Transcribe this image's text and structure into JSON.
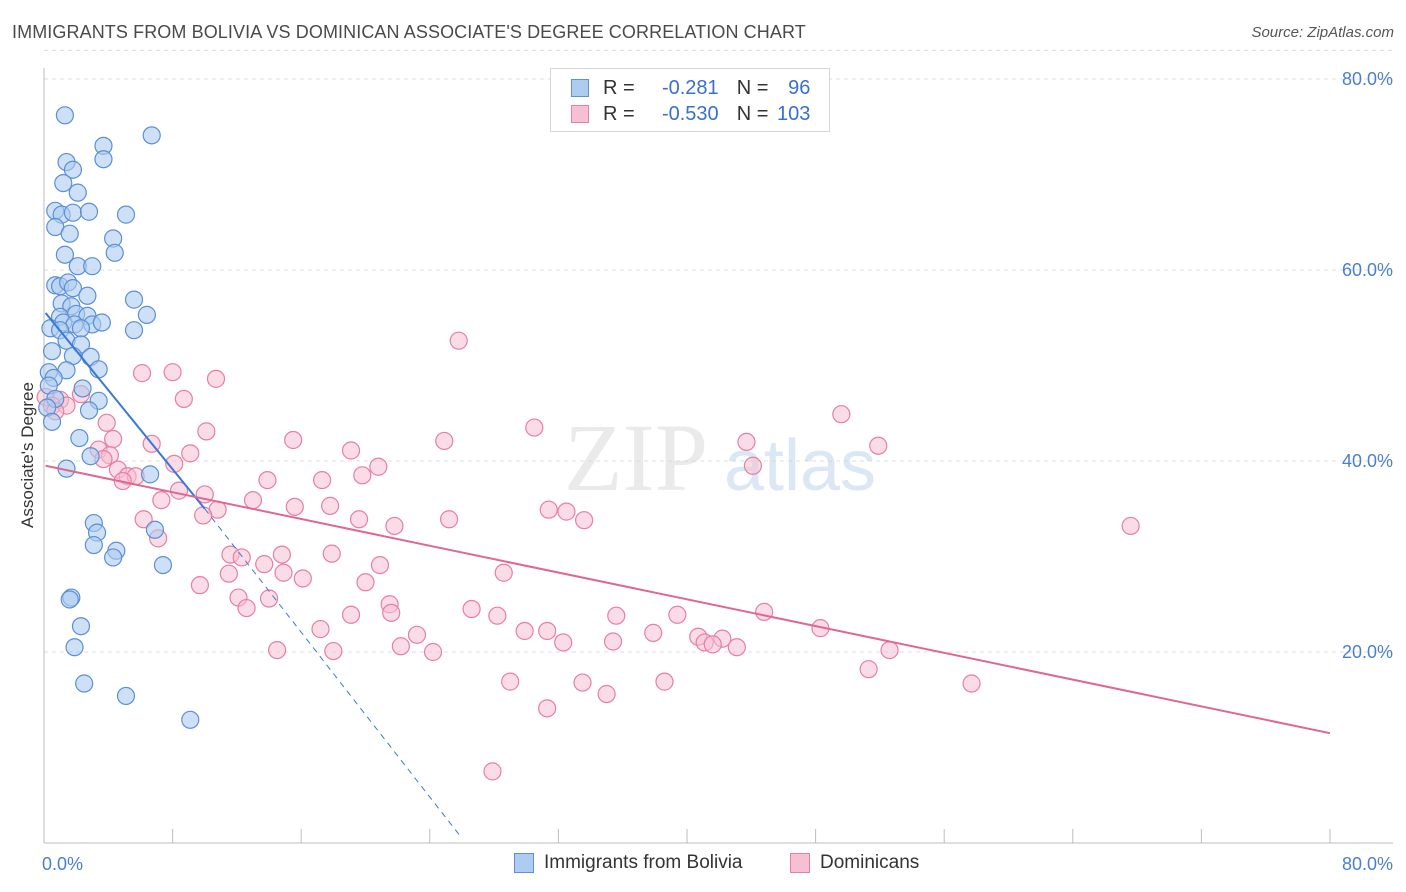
{
  "title": "IMMIGRANTS FROM BOLIVIA VS DOMINICAN ASSOCIATE'S DEGREE CORRELATION CHART",
  "source": "Source: ZipAtlas.com",
  "watermark": {
    "zip": "ZIP",
    "atlas": "atlas"
  },
  "colors": {
    "blue_fill": "#aecbf0",
    "blue_stroke": "#5b8fd6",
    "blue_line": "#3a78d8",
    "pink_fill": "#f6c0d2",
    "pink_stroke": "#e77fa0",
    "pink_line": "#e06792",
    "accent_text": "#4a7fd0"
  },
  "legend": {
    "r_label": "R =",
    "n_label": "N =",
    "bolivia": {
      "r": "-0.281",
      "n": "96"
    },
    "dominican": {
      "r": "-0.530",
      "n": "103"
    }
  },
  "bottom_legend": {
    "bolivia": "Immigrants from Bolivia",
    "dominican": "Dominicans"
  },
  "chart_data": {
    "type": "scatter",
    "title": "IMMIGRANTS FROM BOLIVIA VS DOMINICAN ASSOCIATE'S DEGREE CORRELATION CHART",
    "xlabel": "",
    "ylabel": "Associate's Degree",
    "xlim": [
      0,
      80
    ],
    "ylim": [
      0,
      83
    ],
    "x_tick_labels": [
      "0.0%",
      "80.0%"
    ],
    "y_ticks": [
      20,
      40,
      60,
      80
    ],
    "y_tick_labels": [
      "20.0%",
      "40.0%",
      "60.0%",
      "80.0%"
    ],
    "grid": true,
    "series": [
      {
        "name": "Immigrants from Bolivia",
        "r": -0.281,
        "n": 96,
        "trend": {
          "x0": 0.1,
          "y0": 55.5,
          "x1": 10.0,
          "y1": 35.0,
          "dash_to_x": 26.0,
          "dash_to_y": 0.5
        },
        "points": [
          [
            1.3,
            76.2
          ],
          [
            6.7,
            74.1
          ],
          [
            3.7,
            73
          ],
          [
            1.4,
            71.3
          ],
          [
            3.7,
            71.6
          ],
          [
            1.8,
            70.5
          ],
          [
            1.2,
            69.1
          ],
          [
            2.1,
            68.1
          ],
          [
            0.7,
            66.2
          ],
          [
            1.1,
            65.8
          ],
          [
            1.8,
            66
          ],
          [
            2.8,
            66.1
          ],
          [
            5.1,
            65.8
          ],
          [
            0.7,
            64.5
          ],
          [
            1.6,
            63.8
          ],
          [
            4.3,
            63.3
          ],
          [
            4.4,
            61.8
          ],
          [
            1.3,
            61.6
          ],
          [
            2.1,
            60.4
          ],
          [
            3.0,
            60.4
          ],
          [
            0.7,
            58.4
          ],
          [
            1.0,
            58.3
          ],
          [
            1.5,
            58.7
          ],
          [
            1.8,
            58.1
          ],
          [
            2.7,
            57.3
          ],
          [
            5.6,
            56.9
          ],
          [
            1.1,
            56.5
          ],
          [
            1.7,
            56.2
          ],
          [
            6.4,
            55.3
          ],
          [
            1.0,
            55.1
          ],
          [
            2.0,
            55.4
          ],
          [
            2.7,
            55.2
          ],
          [
            1.2,
            54.5
          ],
          [
            1.9,
            54.3
          ],
          [
            3.0,
            54.3
          ],
          [
            3.6,
            54.5
          ],
          [
            0.4,
            53.9
          ],
          [
            1.0,
            53.7
          ],
          [
            2.3,
            53.9
          ],
          [
            5.6,
            53.7
          ],
          [
            1.4,
            52.6
          ],
          [
            2.3,
            52.2
          ],
          [
            0.5,
            51.5
          ],
          [
            1.8,
            51
          ],
          [
            2.9,
            50.9
          ],
          [
            0.3,
            49.3
          ],
          [
            1.4,
            49.5
          ],
          [
            3.4,
            49.6
          ],
          [
            0.6,
            48.7
          ],
          [
            0.3,
            47.9
          ],
          [
            2.4,
            47.6
          ],
          [
            0.7,
            46.5
          ],
          [
            3.4,
            46.3
          ],
          [
            0.2,
            45.6
          ],
          [
            2.8,
            45.3
          ],
          [
            0.5,
            44.1
          ],
          [
            2.2,
            42.4
          ],
          [
            2.9,
            40.5
          ],
          [
            1.4,
            39.2
          ],
          [
            6.6,
            38.6
          ],
          [
            3.1,
            33.5
          ],
          [
            3.3,
            32.5
          ],
          [
            6.9,
            32.8
          ],
          [
            3.1,
            31.2
          ],
          [
            4.5,
            30.6
          ],
          [
            4.3,
            29.9
          ],
          [
            7.4,
            29.1
          ],
          [
            1.7,
            25.7
          ],
          [
            1.6,
            25.5
          ],
          [
            2.3,
            22.7
          ],
          [
            1.9,
            20.5
          ],
          [
            2.5,
            16.7
          ],
          [
            5.1,
            15.4
          ],
          [
            9.1,
            12.9
          ]
        ]
      },
      {
        "name": "Dominicans",
        "r": -0.53,
        "n": 103,
        "trend": {
          "x0": 0.1,
          "y0": 39.5,
          "x1": 80.0,
          "y1": 11.5
        },
        "points": [
          [
            25.8,
            52.6
          ],
          [
            8.0,
            49.3
          ],
          [
            6.1,
            49.2
          ],
          [
            10.7,
            48.6
          ],
          [
            2.3,
            47
          ],
          [
            0.1,
            46.7
          ],
          [
            1.0,
            46.4
          ],
          [
            8.7,
            46.5
          ],
          [
            0.5,
            45.8
          ],
          [
            1.4,
            45.8
          ],
          [
            0.7,
            45.2
          ],
          [
            49.6,
            44.9
          ],
          [
            3.9,
            44
          ],
          [
            30.5,
            43.5
          ],
          [
            10.1,
            43.1
          ],
          [
            4.3,
            42.3
          ],
          [
            15.5,
            42.2
          ],
          [
            24.9,
            42.1
          ],
          [
            6.7,
            41.8
          ],
          [
            43.7,
            42
          ],
          [
            51.9,
            41.6
          ],
          [
            3.4,
            41.2
          ],
          [
            19.1,
            41.1
          ],
          [
            9.1,
            40.8
          ],
          [
            4.1,
            40.6
          ],
          [
            3.7,
            40.2
          ],
          [
            8.1,
            39.7
          ],
          [
            20.8,
            39.4
          ],
          [
            44.1,
            39.5
          ],
          [
            4.6,
            39.1
          ],
          [
            5.2,
            38.4
          ],
          [
            19.8,
            38.5
          ],
          [
            5.7,
            38.4
          ],
          [
            13.9,
            38
          ],
          [
            17.3,
            38
          ],
          [
            4.9,
            37.9
          ],
          [
            8.4,
            36.9
          ],
          [
            10.0,
            36.5
          ],
          [
            7.3,
            35.9
          ],
          [
            13.0,
            35.9
          ],
          [
            15.6,
            35.2
          ],
          [
            17.8,
            35.3
          ],
          [
            31.4,
            34.9
          ],
          [
            32.5,
            34.7
          ],
          [
            10.8,
            34.9
          ],
          [
            9.9,
            34.3
          ],
          [
            6.2,
            33.9
          ],
          [
            19.6,
            33.9
          ],
          [
            25.2,
            33.9
          ],
          [
            33.6,
            33.8
          ],
          [
            21.8,
            33.2
          ],
          [
            67.6,
            33.2
          ],
          [
            7.1,
            31.9
          ],
          [
            17.9,
            30.3
          ],
          [
            11.6,
            30.2
          ],
          [
            14.8,
            30.2
          ],
          [
            12.3,
            29.9
          ],
          [
            13.7,
            29.2
          ],
          [
            20.9,
            29.1
          ],
          [
            28.6,
            28.3
          ],
          [
            11.5,
            28.2
          ],
          [
            14.9,
            28.3
          ],
          [
            16.1,
            27.7
          ],
          [
            20.0,
            27.3
          ],
          [
            9.7,
            27
          ],
          [
            12.1,
            25.7
          ],
          [
            14.0,
            25.6
          ],
          [
            21.5,
            25
          ],
          [
            12.6,
            24.6
          ],
          [
            26.6,
            24.5
          ],
          [
            21.6,
            24.1
          ],
          [
            19.1,
            23.9
          ],
          [
            28.2,
            23.8
          ],
          [
            35.6,
            23.8
          ],
          [
            39.4,
            23.9
          ],
          [
            44.8,
            24.2
          ],
          [
            48.3,
            22.5
          ],
          [
            17.2,
            22.4
          ],
          [
            29.9,
            22.2
          ],
          [
            31.3,
            22.2
          ],
          [
            37.9,
            22
          ],
          [
            40.7,
            21.6
          ],
          [
            42.2,
            21.4
          ],
          [
            23.2,
            21.8
          ],
          [
            32.3,
            21
          ],
          [
            35.4,
            21.1
          ],
          [
            41.1,
            21
          ],
          [
            41.6,
            20.8
          ],
          [
            43.1,
            20.5
          ],
          [
            22.2,
            20.6
          ],
          [
            14.5,
            20.2
          ],
          [
            18.0,
            20.1
          ],
          [
            24.2,
            20
          ],
          [
            52.6,
            20.2
          ],
          [
            51.3,
            18.2
          ],
          [
            57.7,
            16.7
          ],
          [
            29.0,
            16.9
          ],
          [
            33.5,
            16.8
          ],
          [
            38.6,
            16.9
          ],
          [
            35.0,
            15.6
          ],
          [
            31.3,
            14.1
          ],
          [
            27.9,
            7.5
          ]
        ]
      }
    ]
  }
}
